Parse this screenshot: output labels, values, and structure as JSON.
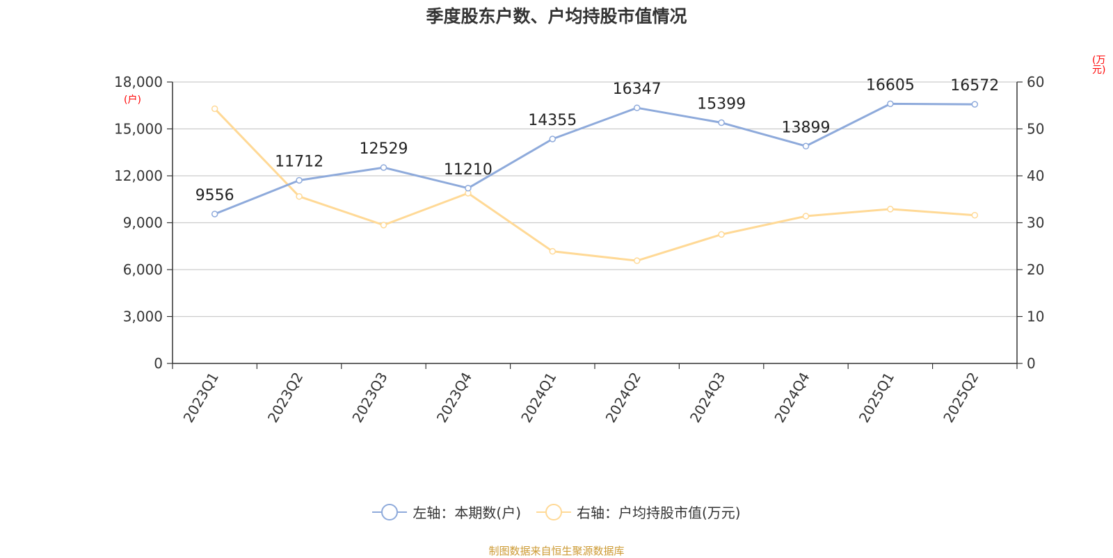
{
  "title": "季度股东户数、户均持股市值情况",
  "unit_left": "(户)",
  "unit_right": "(万元)",
  "source": "制图数据来自恒生聚源数据库",
  "colors": {
    "series1": "#8eaadb",
    "series2": "#ffd996",
    "grid": "#cccccc",
    "unit": "#ff0000",
    "source": "#cc9a33"
  },
  "chart_data": {
    "type": "line",
    "title": "季度股东户数、户均持股市值情况",
    "categories": [
      "2023Q1",
      "2023Q2",
      "2023Q3",
      "2023Q4",
      "2024Q1",
      "2024Q2",
      "2024Q3",
      "2024Q4",
      "2025Q1",
      "2025Q2"
    ],
    "y_left": {
      "min": 0,
      "max": 18000,
      "ticks": [
        "0",
        "3,000",
        "6,000",
        "9,000",
        "12,000",
        "15,000",
        "18,000"
      ]
    },
    "y_right": {
      "min": 0,
      "max": 60,
      "ticks": [
        "0",
        "10",
        "20",
        "30",
        "40",
        "50",
        "60"
      ]
    },
    "series": [
      {
        "name": "左轴：本期数(户)",
        "axis": "left",
        "values": [
          9556,
          11712,
          12529,
          11210,
          14355,
          16347,
          15399,
          13899,
          16605,
          16572
        ],
        "labels": [
          "9556",
          "11712",
          "12529",
          "11210",
          "14355",
          "16347",
          "15399",
          "13899",
          "16605",
          "16572"
        ]
      },
      {
        "name": "右轴：户均持股市值(万元)",
        "axis": "right",
        "values": [
          54.3,
          35.6,
          29.5,
          36.3,
          23.9,
          21.9,
          27.5,
          31.4,
          32.9,
          31.6
        ]
      }
    ],
    "grid": true,
    "legend": "bottom-center"
  }
}
